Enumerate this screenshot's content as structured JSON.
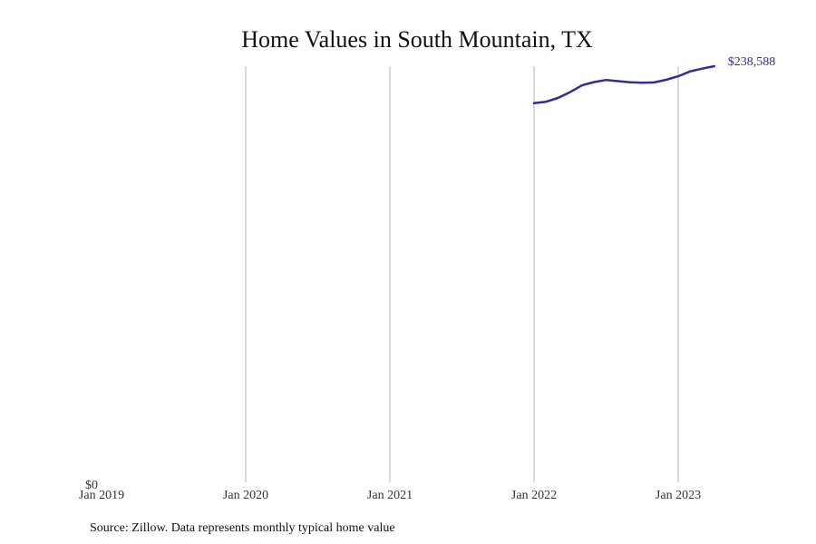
{
  "chart_data": {
    "type": "line",
    "title": "Home Values in South Mountain, TX",
    "xlabel": "",
    "ylabel": "",
    "x_ticks": [
      "Jan 2019",
      "Jan 2020",
      "Jan 2021",
      "Jan 2022",
      "Jan 2023"
    ],
    "y_ticks": [
      "$0"
    ],
    "ylim": [
      0,
      238588
    ],
    "xlim": [
      "2019-01",
      "2023-12"
    ],
    "grid": "vertical",
    "legend": "none",
    "series": [
      {
        "color": "#2e2e96",
        "points": [
          {
            "x": "2022-01",
            "y": 217400
          },
          {
            "x": "2022-02",
            "y": 218200
          },
          {
            "x": "2022-03",
            "y": 220400
          },
          {
            "x": "2022-04",
            "y": 223700
          },
          {
            "x": "2022-05",
            "y": 227600
          },
          {
            "x": "2022-06",
            "y": 229500
          },
          {
            "x": "2022-07",
            "y": 230700
          },
          {
            "x": "2022-08",
            "y": 230000
          },
          {
            "x": "2022-09",
            "y": 229400
          },
          {
            "x": "2022-10",
            "y": 229100
          },
          {
            "x": "2022-11",
            "y": 229300
          },
          {
            "x": "2022-12",
            "y": 230800
          },
          {
            "x": "2023-01",
            "y": 232800
          },
          {
            "x": "2023-02",
            "y": 235600
          },
          {
            "x": "2023-03",
            "y": 237200
          },
          {
            "x": "2023-04",
            "y": 238588
          }
        ],
        "end_label": "$238,588"
      }
    ]
  },
  "footer": {
    "source": "Source: Zillow. Data represents monthly typical home value"
  }
}
